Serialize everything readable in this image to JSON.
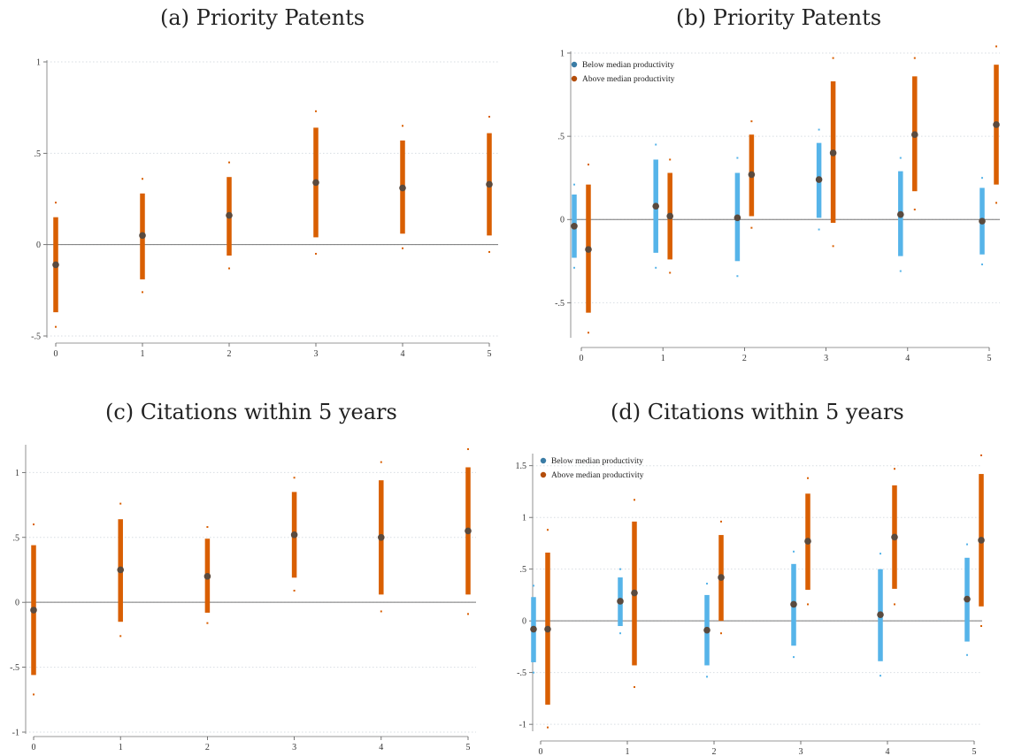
{
  "panels": [
    {
      "id": "a",
      "title": "(a) Priority Patents",
      "chart_data": {
        "type": "scatter",
        "x": [
          0,
          1,
          2,
          3,
          4,
          5
        ],
        "ylim": [
          -0.5,
          1
        ],
        "yticks": [
          -0.5,
          0,
          0.5,
          1
        ],
        "ytick_labels": [
          "-.5",
          "0",
          ".5",
          "1"
        ],
        "xtick_labels": [
          "0",
          "1",
          "2",
          "3",
          "4",
          "5"
        ],
        "grid": true,
        "legend": null,
        "series": [
          {
            "color": "#d95f02",
            "point": [
              -0.11,
              0.05,
              0.16,
              0.34,
              0.31,
              0.33
            ],
            "ci_low": [
              -0.37,
              -0.19,
              -0.06,
              0.04,
              0.06,
              0.05
            ],
            "ci_high": [
              0.15,
              0.28,
              0.37,
              0.64,
              0.57,
              0.61
            ],
            "outer_low": [
              -0.45,
              -0.26,
              -0.13,
              -0.05,
              -0.02,
              -0.04
            ],
            "outer_high": [
              0.23,
              0.36,
              0.45,
              0.73,
              0.65,
              0.7
            ]
          }
        ]
      }
    },
    {
      "id": "b",
      "title": "(b) Priority Patents",
      "chart_data": {
        "type": "scatter",
        "x": [
          0,
          1,
          2,
          3,
          4,
          5
        ],
        "ylim": [
          -0.7,
          1
        ],
        "yticks": [
          -0.5,
          0,
          0.5,
          1
        ],
        "ytick_labels": [
          "-.5",
          "0",
          ".5",
          "1"
        ],
        "xtick_labels": [
          "0",
          "1",
          "2",
          "3",
          "4",
          "5"
        ],
        "grid": true,
        "legend": "top-left",
        "series": [
          {
            "name": "Below median productivity",
            "color": "#56b4e9",
            "point": [
              -0.04,
              0.08,
              0.01,
              0.24,
              0.03,
              -0.01
            ],
            "ci_low": [
              -0.23,
              -0.2,
              -0.25,
              0.01,
              -0.22,
              -0.21
            ],
            "ci_high": [
              0.15,
              0.36,
              0.28,
              0.46,
              0.29,
              0.19
            ],
            "outer_low": [
              -0.29,
              -0.29,
              -0.34,
              -0.06,
              -0.31,
              -0.27
            ],
            "outer_high": [
              0.21,
              0.45,
              0.37,
              0.54,
              0.37,
              0.25
            ]
          },
          {
            "name": "Above median productivity",
            "color": "#d95f02",
            "point": [
              -0.18,
              0.02,
              0.27,
              0.4,
              0.51,
              0.57
            ],
            "ci_low": [
              -0.56,
              -0.24,
              0.02,
              -0.02,
              0.17,
              0.21
            ],
            "ci_high": [
              0.21,
              0.28,
              0.51,
              0.83,
              0.86,
              0.93
            ],
            "outer_low": [
              -0.68,
              -0.32,
              -0.05,
              -0.16,
              0.06,
              0.1
            ],
            "outer_high": [
              0.33,
              0.36,
              0.59,
              0.97,
              0.97,
              1.04
            ]
          }
        ]
      }
    },
    {
      "id": "c",
      "title": "(c) Citations within 5 years",
      "chart_data": {
        "type": "scatter",
        "x": [
          0,
          1,
          2,
          3,
          4,
          5
        ],
        "ylim": [
          -1,
          1.2
        ],
        "yticks": [
          -1,
          -0.5,
          0,
          0.5,
          1
        ],
        "ytick_labels": [
          "-1",
          "-.5",
          "0",
          ".5",
          "1"
        ],
        "xtick_labels": [
          "0",
          "1",
          "2",
          "3",
          "4",
          "5"
        ],
        "grid": true,
        "legend": null,
        "series": [
          {
            "color": "#d95f02",
            "point": [
              -0.06,
              0.25,
              0.2,
              0.52,
              0.5,
              0.55
            ],
            "ci_low": [
              -0.56,
              -0.15,
              -0.08,
              0.19,
              0.06,
              0.06
            ],
            "ci_high": [
              0.44,
              0.64,
              0.49,
              0.85,
              0.94,
              1.04
            ],
            "outer_low": [
              -0.71,
              -0.26,
              -0.16,
              0.09,
              -0.07,
              -0.09
            ],
            "outer_high": [
              0.6,
              0.76,
              0.58,
              0.96,
              1.08,
              1.18
            ]
          }
        ]
      }
    },
    {
      "id": "d",
      "title": "(d) Citations within 5 years",
      "chart_data": {
        "type": "scatter",
        "x": [
          0,
          1,
          2,
          3,
          4,
          5
        ],
        "ylim": [
          -1.05,
          1.6
        ],
        "yticks": [
          -1,
          -0.5,
          0,
          0.5,
          1,
          1.5
        ],
        "ytick_labels": [
          "-1",
          "-.5",
          "0",
          ".5",
          "1",
          "1.5"
        ],
        "xtick_labels": [
          "0",
          "1",
          "2",
          "3",
          "4",
          "5"
        ],
        "grid": true,
        "legend": "top-left",
        "series": [
          {
            "name": "Below median productivity",
            "color": "#56b4e9",
            "point": [
              -0.08,
              0.19,
              -0.09,
              0.16,
              0.06,
              0.21
            ],
            "ci_low": [
              -0.4,
              -0.05,
              -0.43,
              -0.24,
              -0.39,
              -0.2
            ],
            "ci_high": [
              0.23,
              0.42,
              0.25,
              0.55,
              0.5,
              0.61
            ],
            "outer_low": [
              -0.5,
              -0.12,
              -0.54,
              -0.35,
              -0.53,
              -0.33
            ],
            "outer_high": [
              0.34,
              0.5,
              0.36,
              0.67,
              0.65,
              0.74
            ]
          },
          {
            "name": "Above median productivity",
            "color": "#d95f02",
            "point": [
              -0.08,
              0.27,
              0.42,
              0.77,
              0.81,
              0.78
            ],
            "ci_low": [
              -0.81,
              -0.43,
              0.0,
              0.3,
              0.31,
              0.14
            ],
            "ci_high": [
              0.66,
              0.96,
              0.83,
              1.23,
              1.31,
              1.42
            ],
            "outer_low": [
              -1.03,
              -0.64,
              -0.12,
              0.16,
              0.16,
              -0.05
            ],
            "outer_high": [
              0.88,
              1.17,
              0.96,
              1.38,
              1.47,
              1.6
            ]
          }
        ]
      }
    }
  ]
}
